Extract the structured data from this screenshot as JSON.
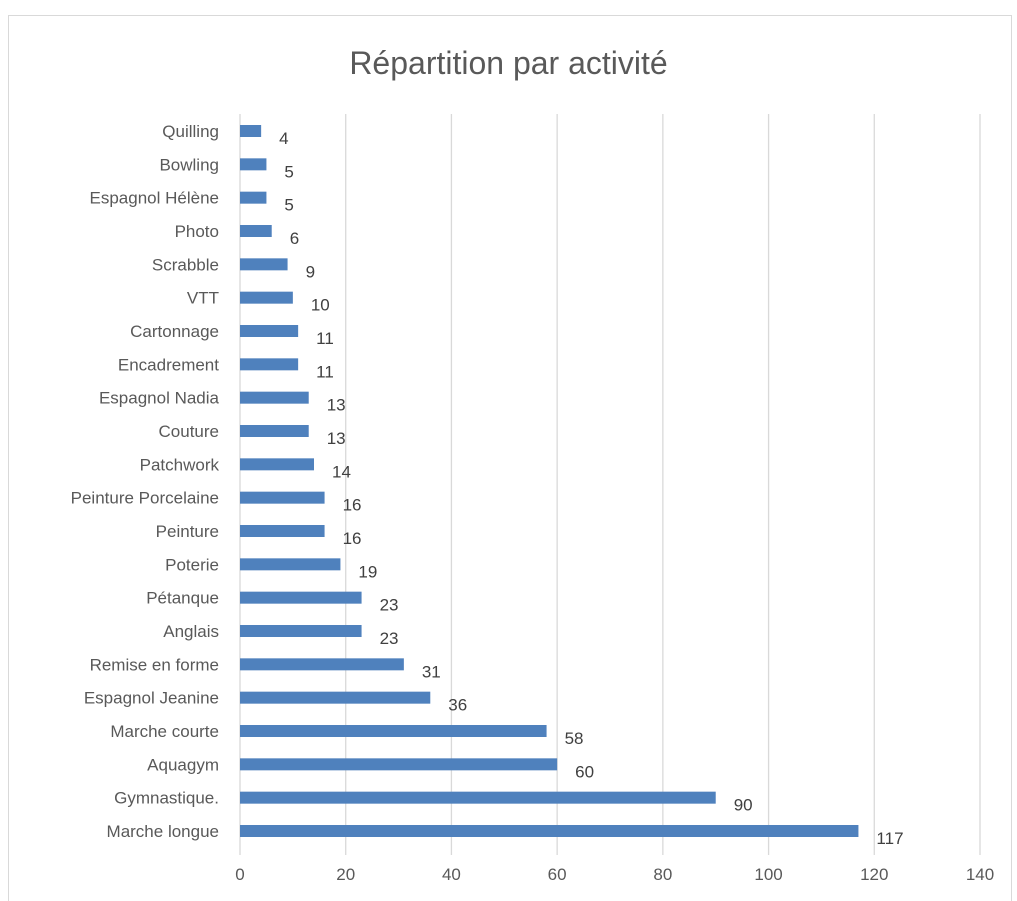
{
  "chart_data": {
    "type": "bar",
    "orientation": "horizontal",
    "title": "Répartition par activité",
    "xlabel": "",
    "ylabel": "",
    "xlim": [
      0,
      140
    ],
    "x_ticks": [
      0,
      20,
      40,
      60,
      80,
      100,
      120,
      140
    ],
    "grid": true,
    "bar_color": "#4f81bd",
    "categories": [
      "Quilling",
      "Bowling",
      "Espagnol Hélène",
      "Photo",
      "Scrabble",
      "VTT",
      "Cartonnage",
      "Encadrement",
      "Espagnol Nadia",
      "Couture",
      "Patchwork",
      "Peinture Porcelaine",
      "Peinture",
      "Poterie",
      "Pétanque",
      "Anglais",
      "Remise en forme",
      "Espagnol Jeanine",
      "Marche courte",
      "Aquagym",
      "Gymnastique.",
      "Marche longue"
    ],
    "values": [
      4,
      5,
      5,
      6,
      9,
      10,
      11,
      11,
      13,
      13,
      14,
      16,
      16,
      19,
      23,
      23,
      31,
      36,
      58,
      60,
      90,
      117
    ]
  }
}
